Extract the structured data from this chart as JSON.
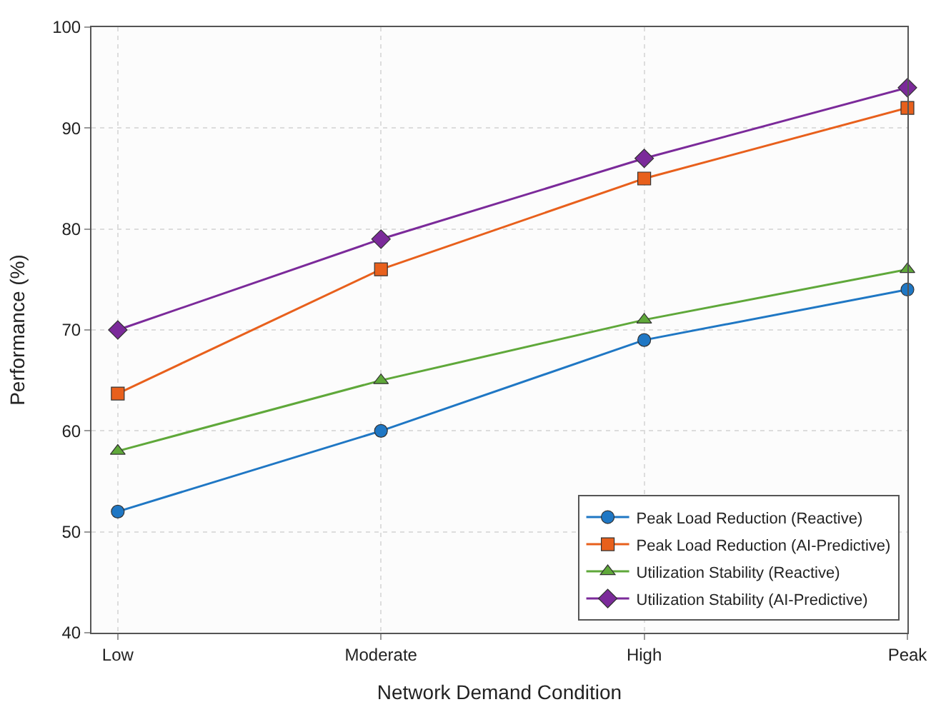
{
  "chart_data": {
    "type": "line",
    "xlabel": "Network Demand Condition",
    "ylabel": "Performance (%)",
    "categories": [
      "Low",
      "Moderate",
      "High",
      "Peak"
    ],
    "series": [
      {
        "name": "Peak Load Reduction (Reactive)",
        "color": "#1f77c4",
        "marker": "circle",
        "values": [
          52,
          60,
          69,
          74
        ]
      },
      {
        "name": "Peak Load Reduction (AI-Predictive)",
        "color": "#e8601c",
        "marker": "square",
        "values": [
          63.7,
          76,
          85,
          92
        ]
      },
      {
        "name": "Utilization Stability (Reactive)",
        "color": "#5fa83a",
        "marker": "triangle",
        "values": [
          58,
          65,
          71,
          76
        ]
      },
      {
        "name": "Utilization Stability (AI-Predictive)",
        "color": "#7b2a9a",
        "marker": "diamond",
        "values": [
          70,
          79,
          87,
          94
        ]
      }
    ],
    "ylim": [
      40,
      100
    ],
    "yticks": [
      40,
      50,
      60,
      70,
      80,
      90,
      100
    ],
    "grid": true,
    "legend": "bottom right",
    "line_style": "solid"
  }
}
